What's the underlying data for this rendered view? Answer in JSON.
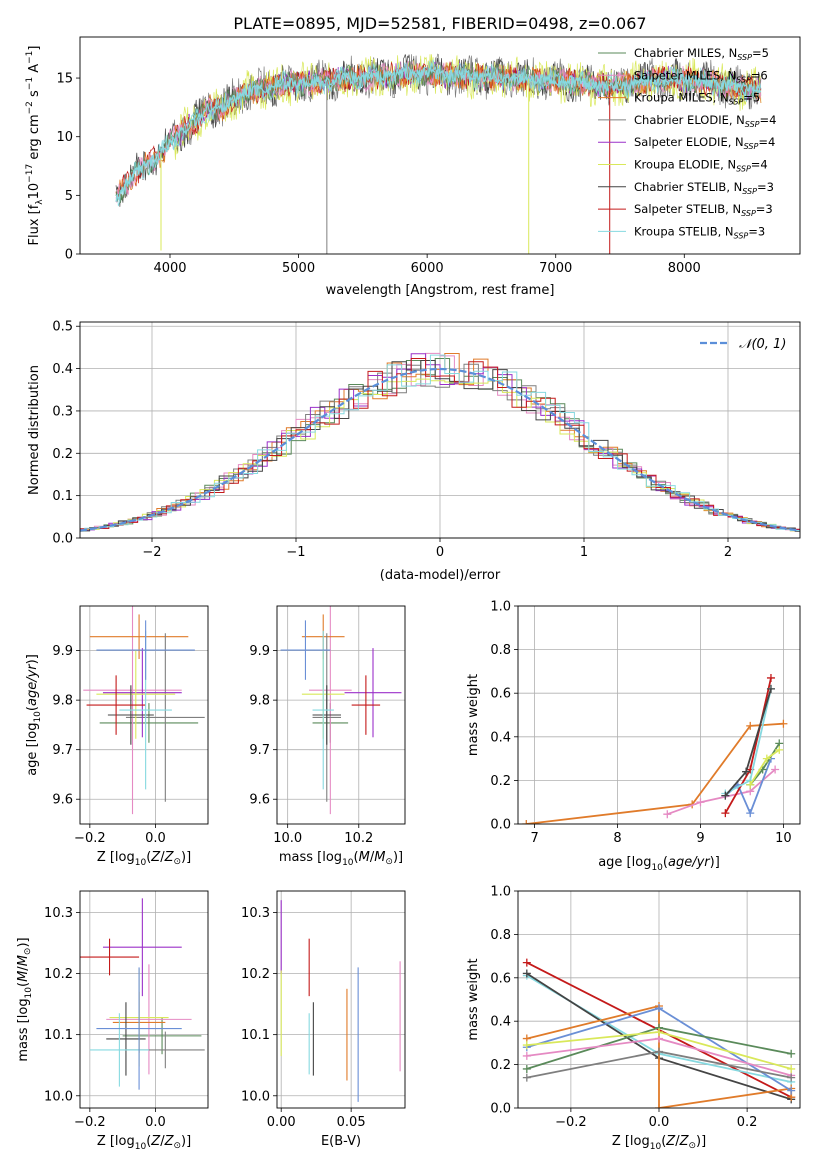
{
  "title": "PLATE=0895, MJD=52581, FIBERID=0498, z=0.067",
  "colors": {
    "Chabrier MILES": "#5a8a5a",
    "Salpeter MILES": "#e58ac3",
    "Kroupa MILES": "#e07b2a",
    "Chabrier ELODIE": "#7f7f7f",
    "Salpeter ELODIE": "#9b30c9",
    "Kroupa ELODIE": "#d9e85a",
    "Chabrier STELIB": "#444444",
    "Salpeter STELIB": "#c41a1a",
    "Kroupa STELIB": "#86d9e0",
    "Normal": "#5b8fd9",
    "Blue": "#6a8fd6"
  },
  "chart_data": [
    {
      "id": "spectrum",
      "type": "line",
      "xlabel": "wavelength [Angstrom, rest frame]",
      "ylabel": "Flux [f_λ10^-17 erg cm^-2 s^-1 A^-1]",
      "xlim": [
        3300,
        8900
      ],
      "ylim": [
        0,
        18.5
      ],
      "xticks": [
        4000,
        5000,
        6000,
        7000,
        8000
      ],
      "yticks": [
        0,
        5,
        10,
        15
      ],
      "grid": false,
      "legend_position": "top-right",
      "legend": [
        {
          "label": "Chabrier MILES, N",
          "sub": "SSP",
          "suffix": "=5"
        },
        {
          "label": "Salpeter MILES, N",
          "sub": "SSP",
          "suffix": "=6"
        },
        {
          "label": "Kroupa MILES, N",
          "sub": "SSP",
          "suffix": "=5"
        },
        {
          "label": "Chabrier ELODIE, N",
          "sub": "SSP",
          "suffix": "=4"
        },
        {
          "label": "Salpeter ELODIE, N",
          "sub": "SSP",
          "suffix": "=4"
        },
        {
          "label": "Kroupa ELODIE, N",
          "sub": "SSP",
          "suffix": "=4"
        },
        {
          "label": "Chabrier STELIB, N",
          "sub": "SSP",
          "suffix": "=3"
        },
        {
          "label": "Salpeter STELIB, N",
          "sub": "SSP",
          "suffix": "=3"
        },
        {
          "label": "Kroupa STELIB, N",
          "sub": "SSP",
          "suffix": "=3"
        }
      ],
      "envelope": {
        "x": [
          3580,
          3700,
          3800,
          3900,
          4000,
          4100,
          4200,
          4300,
          4400,
          4500,
          4600,
          4800,
          5000,
          5200,
          5400,
          5600,
          5800,
          6000,
          6200,
          6400,
          6600,
          6800,
          7000,
          7200,
          7400,
          7600,
          7800,
          8000,
          8200,
          8400,
          8600
        ],
        "y": [
          4.8,
          6.5,
          7.5,
          8.2,
          9.5,
          10.5,
          11.3,
          12.5,
          12.4,
          13.2,
          13.8,
          14.3,
          14.6,
          14.7,
          15.0,
          15.1,
          15.3,
          15.4,
          15.2,
          15.1,
          15.0,
          14.9,
          14.8,
          14.6,
          14.3,
          14.5,
          14.9,
          14.9,
          14.6,
          14.2,
          14.0
        ]
      },
      "spikes": [
        {
          "x": 3930,
          "y": 0.3
        },
        {
          "x": 5220,
          "y": 0
        },
        {
          "x": 6790,
          "y": 0
        },
        {
          "x": 7420,
          "y": 0
        }
      ]
    },
    {
      "id": "residuals",
      "type": "step",
      "xlabel": "(data-model)/error",
      "ylabel": "Normed distribution",
      "xlim": [
        -2.5,
        2.5
      ],
      "ylim": [
        0,
        0.51
      ],
      "xticks": [
        -2,
        -1,
        0,
        1,
        2
      ],
      "yticks": [
        0.0,
        0.1,
        0.2,
        0.3,
        0.4,
        0.5
      ],
      "grid": true,
      "legend_position": "top-right",
      "legend_label": "𝒩(0, 1)"
    },
    {
      "id": "age-vs-z",
      "type": "errorbar",
      "xlabel": "Z [log10(Z/Z⊙)]",
      "ylabel": "age  [log10(age/yr)]",
      "xlim": [
        -0.23,
        0.16
      ],
      "ylim": [
        9.55,
        9.99
      ],
      "xticks": [
        -0.2,
        0.0
      ],
      "yticks": [
        9.6,
        9.7,
        9.8,
        9.9
      ],
      "grid": true,
      "points": [
        {
          "model": "Chabrier MILES",
          "x": -0.02,
          "xerr": 0.15,
          "y": 9.754,
          "yerr": 0.04
        },
        {
          "model": "Salpeter MILES",
          "x": -0.07,
          "xerr": 0.15,
          "y": 9.82,
          "yerr": 0.25
        },
        {
          "model": "Kroupa MILES",
          "x": -0.05,
          "xerr": 0.15,
          "y": 9.928,
          "yerr": 0.045
        },
        {
          "model": "Chabrier ELODIE",
          "x": 0.03,
          "xerr": 0.12,
          "y": 9.765,
          "yerr": 0.17
        },
        {
          "model": "Salpeter ELODIE",
          "x": -0.04,
          "xerr": 0.12,
          "y": 9.815,
          "yerr": 0.09
        },
        {
          "model": "Kroupa ELODIE",
          "x": -0.06,
          "xerr": 0.12,
          "y": 9.812,
          "yerr": 0.09
        },
        {
          "model": "Chabrier STELIB",
          "x": -0.075,
          "xerr": 0.07,
          "y": 9.77,
          "yerr": 0.06
        },
        {
          "model": "Salpeter STELIB",
          "x": -0.12,
          "xerr": 0.09,
          "y": 9.79,
          "yerr": 0.06
        },
        {
          "model": "Kroupa STELIB",
          "x": -0.03,
          "xerr": 0.08,
          "y": 9.78,
          "yerr": 0.16
        },
        {
          "model": "Blue",
          "x": -0.03,
          "xerr": 0.15,
          "y": 9.901,
          "yerr": 0.06
        }
      ]
    },
    {
      "id": "age-vs-mass",
      "type": "errorbar",
      "xlabel": "mass [log10(M/M⊙)]",
      "ylabel": "",
      "xlim": [
        9.97,
        10.33
      ],
      "ylim": [
        9.55,
        9.99
      ],
      "xticks": [
        10.0,
        10.2
      ],
      "yticks": [
        9.6,
        9.7,
        9.8,
        9.9
      ],
      "grid": true,
      "points": [
        {
          "model": "Chabrier MILES",
          "x": 10.12,
          "xerr": 0.05,
          "y": 9.754,
          "yerr": 0.04
        },
        {
          "model": "Salpeter MILES",
          "x": 10.12,
          "xerr": 0.06,
          "y": 9.82,
          "yerr": 0.25
        },
        {
          "model": "Kroupa MILES",
          "x": 10.1,
          "xerr": 0.06,
          "y": 9.928,
          "yerr": 0.045
        },
        {
          "model": "Chabrier ELODIE",
          "x": 10.11,
          "xerr": 0.04,
          "y": 9.765,
          "yerr": 0.17
        },
        {
          "model": "Salpeter ELODIE",
          "x": 10.24,
          "xerr": 0.08,
          "y": 9.815,
          "yerr": 0.09
        },
        {
          "model": "Kroupa ELODIE",
          "x": 10.1,
          "xerr": 0.06,
          "y": 9.812,
          "yerr": 0.09
        },
        {
          "model": "Chabrier STELIB",
          "x": 10.11,
          "xerr": 0.04,
          "y": 9.77,
          "yerr": 0.06
        },
        {
          "model": "Salpeter STELIB",
          "x": 10.22,
          "xerr": 0.04,
          "y": 9.79,
          "yerr": 0.06
        },
        {
          "model": "Kroupa STELIB",
          "x": 10.1,
          "xerr": 0.03,
          "y": 9.78,
          "yerr": 0.16
        },
        {
          "model": "Blue",
          "x": 10.05,
          "xerr": 0.07,
          "y": 9.901,
          "yerr": 0.06
        }
      ]
    },
    {
      "id": "weight-vs-age",
      "type": "line",
      "xlabel": "age  [log10(age/yr)]",
      "ylabel": "mass weight",
      "xlim": [
        6.8,
        10.2
      ],
      "ylim": [
        0,
        1.0
      ],
      "xticks": [
        7,
        8,
        9,
        10
      ],
      "yticks": [
        0.0,
        0.2,
        0.4,
        0.6,
        0.8,
        1.0
      ],
      "grid": true,
      "series": [
        {
          "model": "Kroupa MILES",
          "x": [
            6.9,
            8.9,
            9.6,
            10.0
          ],
          "y": [
            0.0,
            0.09,
            0.45,
            0.46
          ]
        },
        {
          "model": "Salpeter MILES",
          "x": [
            8.6,
            9.0,
            9.6,
            9.9
          ],
          "y": [
            0.045,
            0.1,
            0.15,
            0.25
          ]
        },
        {
          "model": "Blue",
          "x": [
            9.3,
            9.45,
            9.6,
            9.85
          ],
          "y": [
            0.13,
            0.18,
            0.05,
            0.3
          ]
        },
        {
          "model": "Salpeter STELIB",
          "x": [
            9.3,
            9.6,
            9.85
          ],
          "y": [
            0.05,
            0.25,
            0.67
          ]
        },
        {
          "model": "Kroupa STELIB",
          "x": [
            9.3,
            9.6,
            9.85
          ],
          "y": [
            0.14,
            0.2,
            0.62
          ]
        },
        {
          "model": "Chabrier STELIB",
          "x": [
            9.3,
            9.55,
            9.85
          ],
          "y": [
            0.13,
            0.24,
            0.62
          ]
        },
        {
          "model": "Chabrier MILES",
          "x": [
            9.6,
            9.75,
            9.95
          ],
          "y": [
            0.18,
            0.25,
            0.37
          ]
        },
        {
          "model": "Kroupa ELODIE",
          "x": [
            9.6,
            9.8,
            9.95
          ],
          "y": [
            0.18,
            0.3,
            0.34
          ]
        }
      ]
    },
    {
      "id": "mass-vs-z",
      "type": "errorbar",
      "xlabel": "Z [log10(Z/Z⊙)]",
      "ylabel": "mass [log10(M/M⊙)]",
      "xlim": [
        -0.23,
        0.16
      ],
      "ylim": [
        9.98,
        10.335
      ],
      "xticks": [
        -0.2,
        0.0
      ],
      "yticks": [
        10.0,
        10.1,
        10.2,
        10.3
      ],
      "grid": true,
      "points": [
        {
          "model": "Chabrier MILES",
          "x": 0.02,
          "xerr": 0.12,
          "y": 10.098,
          "yerr": 0.03
        },
        {
          "model": "Salpeter MILES",
          "x": -0.02,
          "xerr": 0.13,
          "y": 10.125,
          "yerr": 0.09
        },
        {
          "model": "Kroupa MILES",
          "x": -0.05,
          "xerr": 0.08,
          "y": 10.12,
          "yerr": 0.05
        },
        {
          "model": "Chabrier ELODIE",
          "x": 0.03,
          "xerr": 0.12,
          "y": 10.075,
          "yerr": 0.03
        },
        {
          "model": "Salpeter ELODIE",
          "x": -0.04,
          "xerr": 0.12,
          "y": 10.243,
          "yerr": 0.08
        },
        {
          "model": "Kroupa ELODIE",
          "x": -0.05,
          "xerr": 0.09,
          "y": 10.128,
          "yerr": 0.08
        },
        {
          "model": "Chabrier STELIB",
          "x": -0.09,
          "xerr": 0.06,
          "y": 10.093,
          "yerr": 0.06
        },
        {
          "model": "Salpeter STELIB",
          "x": -0.14,
          "xerr": 0.09,
          "y": 10.227,
          "yerr": 0.03
        },
        {
          "model": "Kroupa STELIB",
          "x": -0.11,
          "xerr": 0.09,
          "y": 10.075,
          "yerr": 0.06
        },
        {
          "model": "Blue",
          "x": -0.05,
          "xerr": 0.13,
          "y": 10.11,
          "yerr": 0.1
        }
      ]
    },
    {
      "id": "mass-vs-ebv",
      "type": "errorbar",
      "xlabel": "E(B-V)",
      "ylabel": "",
      "xlim": [
        -0.003,
        0.0885
      ],
      "ylim": [
        9.98,
        10.335
      ],
      "xticks": [
        0.0,
        0.05
      ],
      "yticks": [
        10.0,
        10.1,
        10.2,
        10.3
      ],
      "grid": true,
      "points": [
        {
          "model": "Salpeter MILES",
          "x": 0.085,
          "y": 10.13,
          "yerr": 0.09
        },
        {
          "model": "Kroupa MILES",
          "x": 0.047,
          "y": 10.1,
          "yerr": 0.075
        },
        {
          "model": "Blue",
          "x": 0.055,
          "y": 10.1,
          "yerr": 0.11
        },
        {
          "model": "Chabrier STELIB",
          "x": 0.023,
          "y": 10.093,
          "yerr": 0.06
        },
        {
          "model": "Salpeter STELIB",
          "x": 0.02,
          "y": 10.21,
          "yerr": 0.047
        },
        {
          "model": "Kroupa STELIB",
          "x": 0.02,
          "y": 10.085,
          "yerr": 0.05
        },
        {
          "model": "Salpeter ELODIE",
          "x": 0.0,
          "y": 10.26,
          "yerr": 0.06
        },
        {
          "model": "Kroupa ELODIE",
          "x": 0.0,
          "y": 10.135,
          "yerr": 0.07
        }
      ]
    },
    {
      "id": "weight-vs-z",
      "type": "line",
      "xlabel": "Z [log10(Z/Z⊙)]",
      "ylabel": "mass weight",
      "xlim": [
        -0.32,
        0.32
      ],
      "ylim": [
        0,
        1.0
      ],
      "xticks": [
        -0.2,
        0.0,
        0.2
      ],
      "yticks": [
        0.0,
        0.2,
        0.4,
        0.6,
        0.8,
        1.0
      ],
      "grid": true,
      "series": [
        {
          "model": "Salpeter STELIB",
          "x": [
            -0.3,
            0.3
          ],
          "y": [
            0.67,
            0.05
          ]
        },
        {
          "model": "Kroupa STELIB",
          "x": [
            -0.3,
            0.0,
            0.3
          ],
          "y": [
            0.61,
            0.25,
            0.12
          ]
        },
        {
          "model": "Chabrier STELIB",
          "x": [
            -0.3,
            0.0,
            0.3
          ],
          "y": [
            0.62,
            0.23,
            0.04
          ]
        },
        {
          "model": "Kroupa MILES",
          "x": [
            -0.3,
            0.0,
            0.0,
            0.3,
            0.3
          ],
          "y": [
            0.32,
            0.47,
            0.0,
            0.09,
            0.05
          ]
        },
        {
          "model": "Blue",
          "x": [
            -0.3,
            0.0,
            0.3
          ],
          "y": [
            0.28,
            0.46,
            0.08
          ]
        },
        {
          "model": "Chabrier MILES",
          "x": [
            -0.3,
            0.0,
            0.3
          ],
          "y": [
            0.18,
            0.37,
            0.25
          ]
        },
        {
          "model": "Salpeter MILES",
          "x": [
            -0.3,
            0.0,
            0.3
          ],
          "y": [
            0.24,
            0.32,
            0.15
          ]
        },
        {
          "model": "Kroupa ELODIE",
          "x": [
            -0.3,
            0.0,
            0.3
          ],
          "y": [
            0.29,
            0.35,
            0.18
          ]
        },
        {
          "model": "Chabrier ELODIE",
          "x": [
            -0.3,
            0.0,
            0.3
          ],
          "y": [
            0.14,
            0.26,
            0.14
          ]
        }
      ]
    }
  ]
}
